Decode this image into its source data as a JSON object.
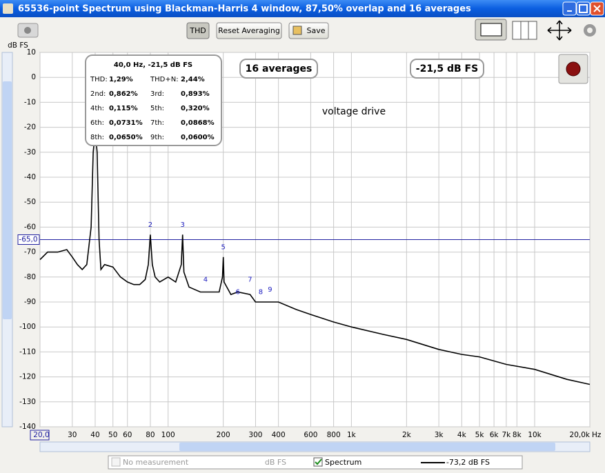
{
  "window": {
    "title": "65536-point Spectrum using Blackman-Harris 4 window, 87,50% overlap and 16 averages"
  },
  "toolbar": {
    "buttons": [
      "THD",
      "Reset Averaging",
      "Save"
    ]
  },
  "chart_data": {
    "type": "line",
    "y_label": "dB FS",
    "x_unit": "Hz",
    "log_x": true,
    "grid": true,
    "xlim": [
      20,
      20000
    ],
    "ylim": [
      -140,
      10
    ],
    "xticks": [
      {
        "value": 20,
        "label": "20,0"
      },
      30,
      40,
      50,
      60,
      80,
      100,
      200,
      300,
      400,
      600,
      800,
      {
        "value": 1000,
        "label": "1k"
      },
      {
        "value": 2000,
        "label": "2k"
      },
      {
        "value": 3000,
        "label": "3k"
      },
      {
        "value": 4000,
        "label": "4k"
      },
      {
        "value": 5000,
        "label": "5k"
      },
      {
        "value": 6000,
        "label": "6k"
      },
      {
        "value": 7000,
        "label": "7k"
      },
      {
        "value": 8000,
        "label": "8k"
      },
      {
        "value": 10000,
        "label": "10k"
      },
      {
        "value": 20000,
        "label": "20,0k"
      }
    ],
    "yticks": [
      10,
      0,
      -10,
      -20,
      -30,
      -40,
      -50,
      -60,
      -70,
      -80,
      -90,
      -100,
      -110,
      -120,
      -130,
      -140
    ],
    "marker_line": {
      "value": -65,
      "label": "-65,0",
      "color": "#2020a0"
    },
    "x": [
      20,
      22,
      25,
      28,
      30,
      32,
      34,
      36,
      38,
      39,
      40,
      41,
      42,
      43,
      45,
      50,
      55,
      60,
      65,
      70,
      75,
      78,
      80,
      82,
      85,
      90,
      100,
      110,
      118,
      120,
      122,
      130,
      150,
      170,
      190,
      198,
      200,
      202,
      220,
      240,
      280,
      300,
      400,
      500,
      600,
      800,
      1000,
      1500,
      2000,
      3000,
      4000,
      5000,
      7000,
      10000,
      15000,
      20000
    ],
    "series": [
      {
        "name": "Spectrum",
        "color": "#000000",
        "values": [
          -73,
          -70,
          -70,
          -69,
          -72,
          -75,
          -77,
          -75,
          -60,
          -30,
          -21.5,
          -30,
          -65,
          -77,
          -75,
          -76,
          -80,
          -82,
          -83,
          -83,
          -81,
          -75,
          -63,
          -75,
          -80,
          -82,
          -80,
          -82,
          -75,
          -63,
          -78,
          -84,
          -86,
          -86,
          -86,
          -80,
          -72,
          -82,
          -87,
          -86,
          -87,
          -90,
          -90,
          -93,
          -95,
          -98,
          -100,
          -103,
          -105,
          -109,
          -111,
          -112,
          -115,
          -117,
          -121,
          -123
        ]
      }
    ],
    "harmonics": [
      {
        "label": "2",
        "x": 80,
        "y": -59
      },
      {
        "label": "3",
        "x": 120,
        "y": -59
      },
      {
        "label": "4",
        "x": 160,
        "y": -81
      },
      {
        "label": "5",
        "x": 200,
        "y": -68
      },
      {
        "label": "6",
        "x": 240,
        "y": -86
      },
      {
        "label": "7",
        "x": 280,
        "y": -81
      },
      {
        "label": "8",
        "x": 320,
        "y": -86
      },
      {
        "label": "9",
        "x": 360,
        "y": -85
      }
    ]
  },
  "thd_box": {
    "title": "40,0 Hz, -21,5 dB FS",
    "rows": [
      [
        "THD:",
        "1,29%",
        "THD+N:",
        "2,44%"
      ],
      [
        "2nd:",
        "0,862%",
        "3rd:",
        "0,893%"
      ],
      [
        "4th:",
        "0,115%",
        "5th:",
        "0,320%"
      ],
      [
        "6th:",
        "0,0731%",
        "7th:",
        "0,0868%"
      ],
      [
        "8th:",
        "0,0650%",
        "9th:",
        "0,0600%"
      ]
    ]
  },
  "overlays": {
    "averages": "16 averages",
    "level": "-21,5 dB FS",
    "note": "voltage drive"
  },
  "legend": {
    "items": [
      {
        "name": "No measurement",
        "unit": "dB FS"
      },
      {
        "value": "-73,2 dB FS"
      }
    ]
  }
}
